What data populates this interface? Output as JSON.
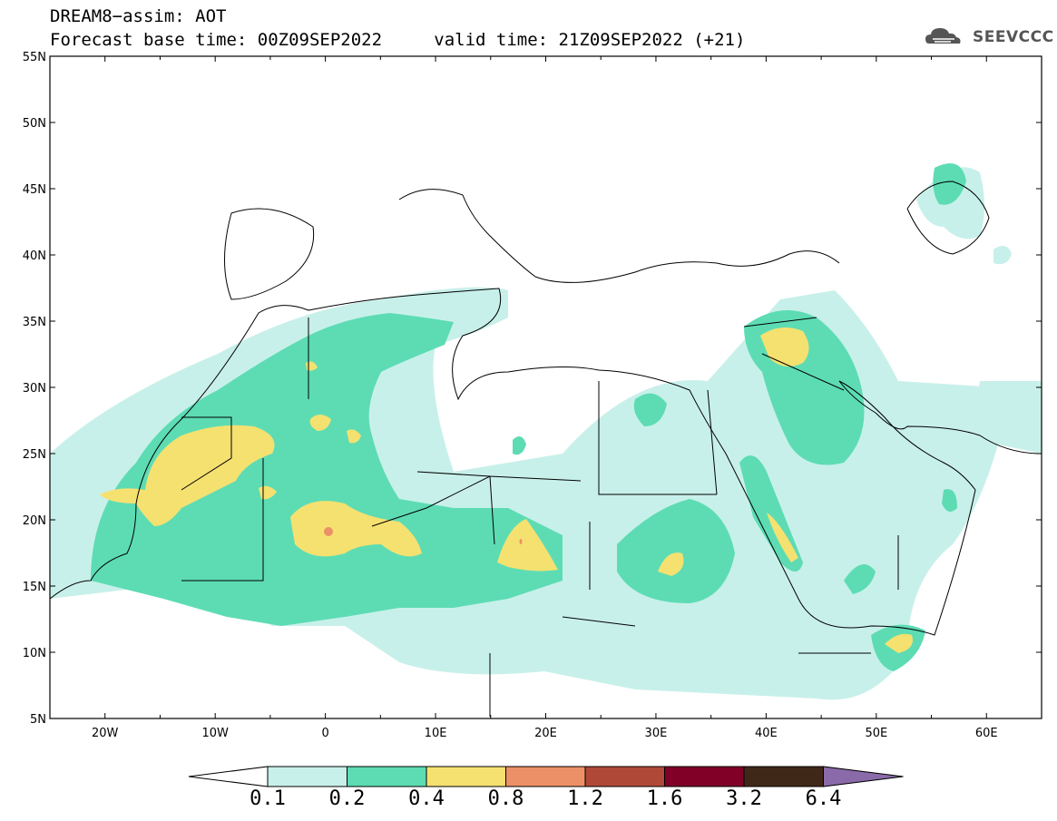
{
  "title": {
    "line1": "DREAM8−assim: AOT",
    "line2_base": "Forecast base time: 00Z09SEP2022",
    "line2_valid": "valid time: 21Z09SEP2022 (+21)"
  },
  "logo": {
    "text": "SEEVCCC",
    "icon": "cloud-logo-icon"
  },
  "map": {
    "lon_range": [
      -25,
      65
    ],
    "lat_range": [
      5,
      55
    ],
    "lat_ticks": [
      "5N",
      "10N",
      "15N",
      "20N",
      "25N",
      "30N",
      "35N",
      "40N",
      "45N",
      "50N",
      "55N"
    ],
    "lon_ticks": [
      "20W",
      "10W",
      "0",
      "10E",
      "20E",
      "30E",
      "40E",
      "50E",
      "60E"
    ]
  },
  "colorbar": {
    "labels": [
      "0.1",
      "0.2",
      "0.4",
      "0.8",
      "1.2",
      "1.6",
      "3.2",
      "6.4"
    ],
    "colors": [
      "#c8f0ea",
      "#5ddcb4",
      "#f5e170",
      "#ec9068",
      "#b04838",
      "#800028",
      "#402818",
      "#8a6aa8"
    ]
  }
}
